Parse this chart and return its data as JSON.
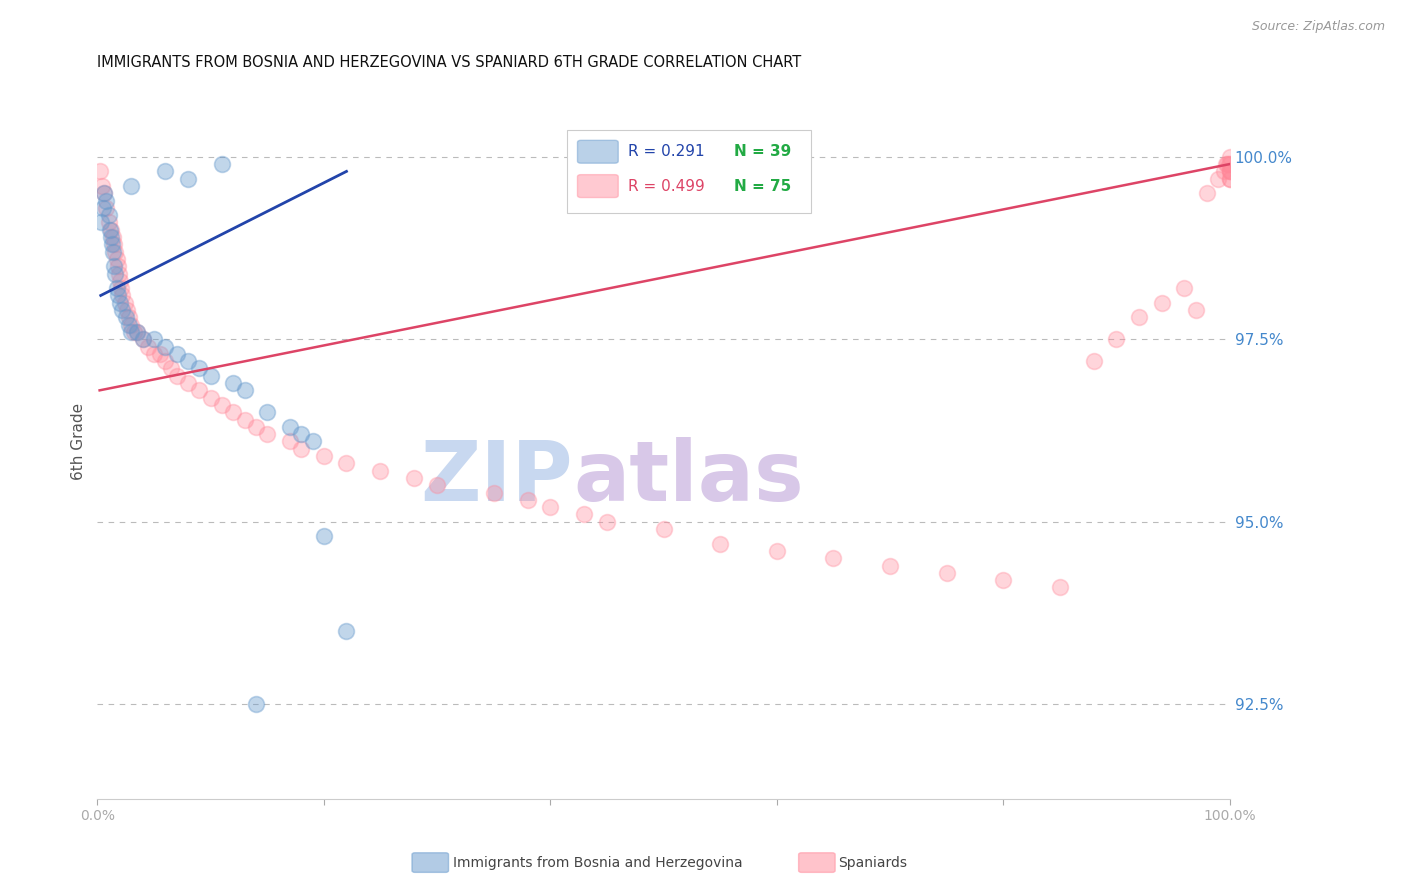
{
  "title": "IMMIGRANTS FROM BOSNIA AND HERZEGOVINA VS SPANIARD 6TH GRADE CORRELATION CHART",
  "source": "Source: ZipAtlas.com",
  "ylabel": "6th Grade",
  "y_tick_labels": [
    "92.5%",
    "95.0%",
    "97.5%",
    "100.0%"
  ],
  "y_tick_values": [
    92.5,
    95.0,
    97.5,
    100.0
  ],
  "xlim": [
    0.0,
    100.0
  ],
  "ylim": [
    91.2,
    101.0
  ],
  "legend_R1": "R = 0.291",
  "legend_N1": "N = 39",
  "legend_R2": "R = 0.499",
  "legend_N2": "N = 75",
  "blue_color": "#6699CC",
  "pink_color": "#FF8899",
  "blue_line_color": "#2244AA",
  "pink_line_color": "#DD4466",
  "legend_R1_color": "#2244AA",
  "legend_N1_color": "#22AA44",
  "legend_R2_color": "#DD4466",
  "legend_N2_color": "#22AA44",
  "title_color": "#111111",
  "source_color": "#999999",
  "right_label_color": "#4488CC",
  "axis_label_color": "#555555",
  "watermark_zip_color": "#C8D8F0",
  "watermark_atlas_color": "#D8C8E8",
  "blue_x": [
    0.3,
    0.5,
    0.6,
    0.8,
    1.0,
    1.1,
    1.2,
    1.3,
    1.4,
    1.5,
    1.6,
    1.7,
    1.8,
    2.0,
    2.2,
    2.5,
    2.8,
    3.0,
    3.5,
    4.0,
    5.0,
    6.0,
    7.0,
    8.0,
    9.0,
    10.0,
    12.0,
    13.0,
    15.0,
    17.0,
    18.0,
    19.0,
    20.0,
    22.0,
    3.0,
    6.0,
    8.0,
    11.0,
    14.0
  ],
  "blue_y": [
    99.1,
    99.3,
    99.5,
    99.4,
    99.2,
    99.0,
    98.9,
    98.8,
    98.7,
    98.5,
    98.4,
    98.2,
    98.1,
    98.0,
    97.9,
    97.8,
    97.7,
    97.6,
    97.6,
    97.5,
    97.5,
    97.4,
    97.3,
    97.2,
    97.1,
    97.0,
    96.9,
    96.8,
    96.5,
    96.3,
    96.2,
    96.1,
    94.8,
    93.5,
    99.6,
    99.8,
    99.7,
    99.9,
    92.5
  ],
  "pink_x": [
    0.2,
    0.4,
    0.6,
    0.8,
    1.0,
    1.2,
    1.4,
    1.5,
    1.6,
    1.7,
    1.8,
    1.9,
    2.0,
    2.1,
    2.2,
    2.4,
    2.6,
    2.8,
    3.0,
    3.2,
    3.5,
    4.0,
    4.5,
    5.0,
    5.5,
    6.0,
    6.5,
    7.0,
    8.0,
    9.0,
    10.0,
    11.0,
    12.0,
    13.0,
    14.0,
    15.0,
    17.0,
    18.0,
    20.0,
    22.0,
    25.0,
    28.0,
    30.0,
    35.0,
    38.0,
    40.0,
    43.0,
    45.0,
    50.0,
    55.0,
    60.0,
    65.0,
    70.0,
    75.0,
    80.0,
    85.0,
    88.0,
    90.0,
    92.0,
    94.0,
    96.0,
    97.0,
    98.0,
    99.0,
    99.5,
    99.7,
    99.8,
    99.9,
    100.0,
    100.0,
    100.0,
    100.0,
    100.0,
    100.0,
    100.0
  ],
  "pink_y": [
    99.8,
    99.6,
    99.5,
    99.3,
    99.1,
    99.0,
    98.9,
    98.8,
    98.7,
    98.6,
    98.5,
    98.4,
    98.3,
    98.2,
    98.1,
    98.0,
    97.9,
    97.8,
    97.7,
    97.6,
    97.6,
    97.5,
    97.4,
    97.3,
    97.3,
    97.2,
    97.1,
    97.0,
    96.9,
    96.8,
    96.7,
    96.6,
    96.5,
    96.4,
    96.3,
    96.2,
    96.1,
    96.0,
    95.9,
    95.8,
    95.7,
    95.6,
    95.5,
    95.4,
    95.3,
    95.2,
    95.1,
    95.0,
    94.9,
    94.7,
    94.6,
    94.5,
    94.4,
    94.3,
    94.2,
    94.1,
    97.2,
    97.5,
    97.8,
    98.0,
    98.2,
    97.9,
    99.5,
    99.7,
    99.8,
    99.9,
    99.9,
    99.9,
    99.8,
    99.8,
    99.7,
    99.7,
    99.8,
    99.9,
    100.0
  ],
  "blue_trend_x": [
    0.3,
    22.0
  ],
  "blue_trend_y": [
    98.1,
    99.8
  ],
  "pink_trend_x": [
    0.2,
    100.0
  ],
  "pink_trend_y": [
    96.8,
    99.9
  ]
}
